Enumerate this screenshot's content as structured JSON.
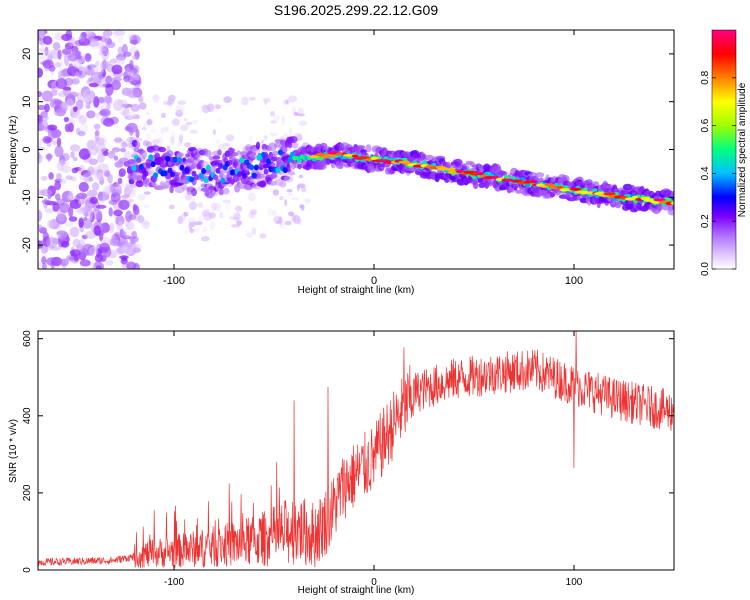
{
  "title": "S196.2025.299.22.12.G09",
  "chart_data": [
    {
      "type": "heatmap",
      "title": "S196.2025.299.22.12.G09",
      "xlabel": "Height of straight line (km)",
      "ylabel": "Frequency (Hz)",
      "xlim": [
        -168,
        150
      ],
      "ylim": [
        -25,
        25
      ],
      "xticks": [
        -100,
        0,
        100
      ],
      "yticks": [
        -20,
        -10,
        0,
        10,
        20
      ],
      "colorbar": {
        "label": "Normalized spectral amplitude",
        "range": [
          0,
          1
        ],
        "ticks": [
          "0.0",
          "0.2",
          "0.4",
          "0.6",
          "0.8"
        ],
        "colors": [
          "#ffffff",
          "#e0c6ff",
          "#b070ff",
          "#7b00ff",
          "#0000ff",
          "#00c0ff",
          "#00ff80",
          "#a0ff00",
          "#ffff00",
          "#ff8000",
          "#ff0000",
          "#ff0080"
        ]
      },
      "ridge": {
        "description": "dominant frequency trend",
        "x": [
          -120,
          -80,
          -60,
          -40,
          -20,
          0,
          20,
          40,
          60,
          80,
          100,
          120,
          150
        ],
        "y": [
          -3,
          -5,
          -3.5,
          -2,
          -1,
          -2,
          -3,
          -4.5,
          -5.8,
          -7.2,
          -8.5,
          -9.7,
          -11.2
        ]
      }
    },
    {
      "type": "line",
      "xlabel": "Height of straight line (km)",
      "ylabel": "SNR (10 * v/v)",
      "xlim": [
        -168,
        150
      ],
      "ylim": [
        0,
        620
      ],
      "xticks": [
        -100,
        0,
        100
      ],
      "yticks": [
        0,
        200,
        400,
        600
      ],
      "color": "#ee3333",
      "trend": {
        "x": [
          -168,
          -130,
          -115,
          -80,
          -60,
          -45,
          -40,
          -30,
          -22,
          -15,
          0,
          10,
          20,
          40,
          60,
          80,
          100,
          120,
          150
        ],
        "y": [
          20,
          25,
          40,
          60,
          75,
          95,
          110,
          90,
          140,
          220,
          290,
          380,
          460,
          495,
          510,
          520,
          480,
          445,
          410
        ]
      },
      "spikes": [
        {
          "x": 101,
          "y": 620
        },
        {
          "x": 100,
          "y": 265
        },
        {
          "x": -40,
          "y": 440
        },
        {
          "x": -23,
          "y": 475
        },
        {
          "x": 15,
          "y": 578
        }
      ]
    }
  ]
}
